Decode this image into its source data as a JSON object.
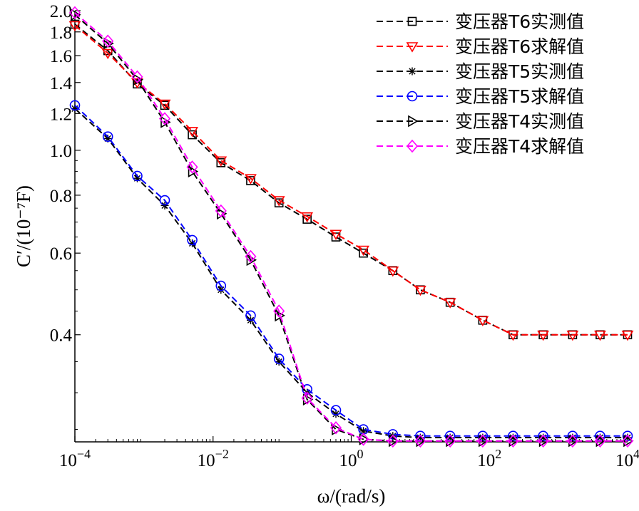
{
  "chart_data": {
    "type": "line",
    "xlabel": "ω/(rad/s)",
    "ylabel": "C′/(10⁻⁷F)",
    "xscale": "log",
    "yscale": "log",
    "xlim": [
      0.0001,
      10000
    ],
    "ylim": [
      0.235,
      2.0
    ],
    "x_ticks": [
      {
        "value": 0.0001,
        "base": "10",
        "exp": "−4"
      },
      {
        "value": 0.01,
        "base": "10",
        "exp": "−2"
      },
      {
        "value": 1,
        "base": "10",
        "exp": "0"
      },
      {
        "value": 100,
        "base": "10",
        "exp": "2"
      },
      {
        "value": 10000,
        "base": "10",
        "exp": "4"
      }
    ],
    "y_ticks": [
      {
        "value": 0.4,
        "label": "0.4"
      },
      {
        "value": 0.6,
        "label": "0.6"
      },
      {
        "value": 0.8,
        "label": "0.8"
      },
      {
        "value": 1.0,
        "label": "1.0"
      },
      {
        "value": 1.2,
        "label": "1.2"
      },
      {
        "value": 1.4,
        "label": "1.4"
      },
      {
        "value": 1.6,
        "label": "1.6"
      },
      {
        "value": 1.8,
        "label": "1.8"
      },
      {
        "value": 2.0,
        "label": "2.0"
      }
    ],
    "grid": false,
    "legend_position": "top-right",
    "series": [
      {
        "name": "变压器T6实测值",
        "color": "#000000",
        "marker": "square",
        "points": [
          [
            0.0001,
            1.87
          ],
          [
            0.0003,
            1.64
          ],
          [
            0.0008,
            1.39
          ],
          [
            0.002,
            1.25
          ],
          [
            0.005,
            1.08
          ],
          [
            0.013,
            0.94
          ],
          [
            0.035,
            0.86
          ],
          [
            0.09,
            0.77
          ],
          [
            0.23,
            0.71
          ],
          [
            0.6,
            0.65
          ],
          [
            1.5,
            0.6
          ],
          [
            4,
            0.55
          ],
          [
            10,
            0.5
          ],
          [
            27,
            0.47
          ],
          [
            80,
            0.43
          ],
          [
            220,
            0.4
          ],
          [
            600,
            0.4
          ],
          [
            1600,
            0.4
          ],
          [
            4000,
            0.4
          ],
          [
            10000,
            0.4
          ]
        ]
      },
      {
        "name": "变压器T6求解值",
        "color": "#ff0000",
        "marker": "triangle-down",
        "points": [
          [
            0.0001,
            1.86
          ],
          [
            0.0003,
            1.62
          ],
          [
            0.0008,
            1.4
          ],
          [
            0.002,
            1.26
          ],
          [
            0.005,
            1.1
          ],
          [
            0.013,
            0.95
          ],
          [
            0.035,
            0.87
          ],
          [
            0.09,
            0.78
          ],
          [
            0.23,
            0.72
          ],
          [
            0.6,
            0.66
          ],
          [
            1.5,
            0.61
          ],
          [
            4,
            0.55
          ],
          [
            10,
            0.5
          ],
          [
            27,
            0.47
          ],
          [
            80,
            0.43
          ],
          [
            220,
            0.4
          ],
          [
            600,
            0.4
          ],
          [
            1600,
            0.4
          ],
          [
            4000,
            0.4
          ],
          [
            10000,
            0.4
          ]
        ]
      },
      {
        "name": "变压器T5实测值",
        "color": "#000000",
        "marker": "asterisk",
        "points": [
          [
            0.0001,
            1.23
          ],
          [
            0.0003,
            1.06
          ],
          [
            0.0008,
            0.87
          ],
          [
            0.002,
            0.76
          ],
          [
            0.005,
            0.63
          ],
          [
            0.013,
            0.5
          ],
          [
            0.035,
            0.43
          ],
          [
            0.09,
            0.35
          ],
          [
            0.23,
            0.3
          ],
          [
            0.6,
            0.27
          ],
          [
            1.5,
            0.248
          ],
          [
            4,
            0.242
          ],
          [
            10,
            0.24
          ],
          [
            27,
            0.24
          ],
          [
            80,
            0.24
          ],
          [
            220,
            0.24
          ],
          [
            600,
            0.24
          ],
          [
            1600,
            0.24
          ],
          [
            4000,
            0.24
          ],
          [
            10000,
            0.24
          ]
        ]
      },
      {
        "name": "变压器T5求解值",
        "color": "#0000ff",
        "marker": "circle",
        "points": [
          [
            0.0001,
            1.25
          ],
          [
            0.0003,
            1.07
          ],
          [
            0.0008,
            0.88
          ],
          [
            0.002,
            0.78
          ],
          [
            0.005,
            0.64
          ],
          [
            0.013,
            0.51
          ],
          [
            0.035,
            0.44
          ],
          [
            0.09,
            0.355
          ],
          [
            0.23,
            0.305
          ],
          [
            0.6,
            0.275
          ],
          [
            1.5,
            0.25
          ],
          [
            4,
            0.244
          ],
          [
            10,
            0.242
          ],
          [
            27,
            0.242
          ],
          [
            80,
            0.242
          ],
          [
            220,
            0.242
          ],
          [
            600,
            0.242
          ],
          [
            1600,
            0.242
          ],
          [
            4000,
            0.242
          ],
          [
            10000,
            0.242
          ]
        ]
      },
      {
        "name": "变压器T4实测值",
        "color": "#000000",
        "marker": "triangle-right",
        "points": [
          [
            0.0001,
            1.96
          ],
          [
            0.0003,
            1.7
          ],
          [
            0.0008,
            1.42
          ],
          [
            0.002,
            1.15
          ],
          [
            0.005,
            0.9
          ],
          [
            0.013,
            0.73
          ],
          [
            0.035,
            0.58
          ],
          [
            0.09,
            0.44
          ],
          [
            0.23,
            0.29
          ],
          [
            0.6,
            0.25
          ],
          [
            1.5,
            0.238
          ],
          [
            4,
            0.236
          ],
          [
            10,
            0.236
          ],
          [
            27,
            0.236
          ],
          [
            80,
            0.236
          ],
          [
            220,
            0.236
          ],
          [
            600,
            0.236
          ],
          [
            1600,
            0.236
          ],
          [
            4000,
            0.236
          ],
          [
            10000,
            0.236
          ]
        ]
      },
      {
        "name": "变压器T4求解值",
        "color": "#ff00ff",
        "marker": "diamond",
        "points": [
          [
            0.0001,
            1.98
          ],
          [
            0.0003,
            1.72
          ],
          [
            0.0008,
            1.44
          ],
          [
            0.002,
            1.17
          ],
          [
            0.005,
            0.92
          ],
          [
            0.013,
            0.74
          ],
          [
            0.035,
            0.59
          ],
          [
            0.09,
            0.45
          ],
          [
            0.23,
            0.292
          ],
          [
            0.6,
            0.252
          ],
          [
            1.5,
            0.238
          ],
          [
            4,
            0.236
          ],
          [
            10,
            0.236
          ],
          [
            27,
            0.236
          ],
          [
            80,
            0.236
          ],
          [
            220,
            0.236
          ],
          [
            600,
            0.236
          ],
          [
            1600,
            0.236
          ],
          [
            4000,
            0.236
          ],
          [
            10000,
            0.236
          ]
        ]
      }
    ]
  }
}
